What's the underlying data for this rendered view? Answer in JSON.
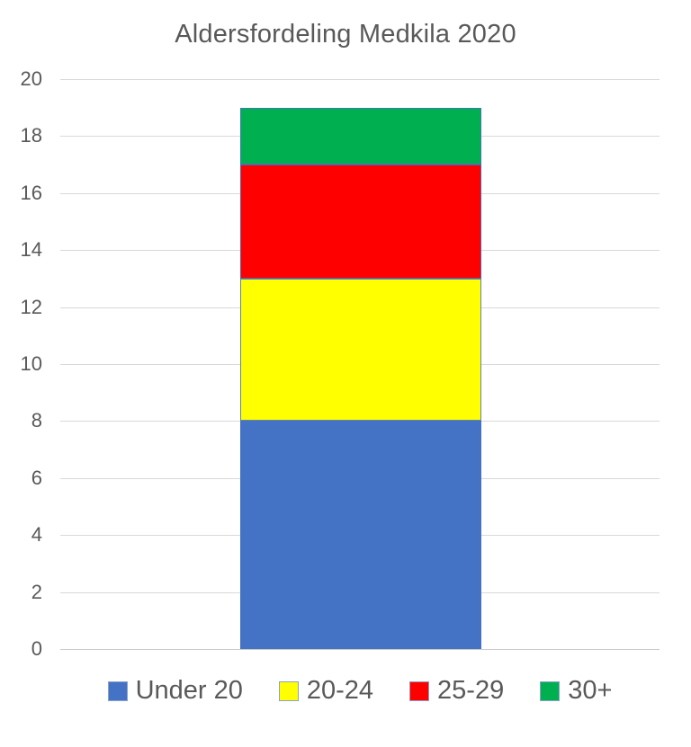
{
  "chart_data": {
    "type": "bar",
    "stacked": true,
    "title": "Aldersfordeling Medkila 2020",
    "categories": [
      ""
    ],
    "series": [
      {
        "name": "Under 20",
        "color": "#4472c4",
        "values": [
          8
        ]
      },
      {
        "name": "20-24",
        "color": "#ffff00",
        "values": [
          5
        ]
      },
      {
        "name": "25-29",
        "color": "#ff0000",
        "values": [
          4
        ]
      },
      {
        "name": "30+",
        "color": "#00b050",
        "values": [
          2
        ]
      }
    ],
    "total": 19,
    "xlabel": "",
    "ylabel": "",
    "ylim": [
      0,
      20
    ],
    "yticks": [
      0,
      2,
      4,
      6,
      8,
      10,
      12,
      14,
      16,
      18,
      20
    ],
    "grid": true,
    "legend_position": "bottom"
  },
  "colors": {
    "title_text": "#595959",
    "axis_text": "#595959",
    "gridline": "#d9d9d9",
    "axis_line": "#c9c9c9",
    "segment_border": "#4472c4",
    "background": "#ffffff"
  }
}
